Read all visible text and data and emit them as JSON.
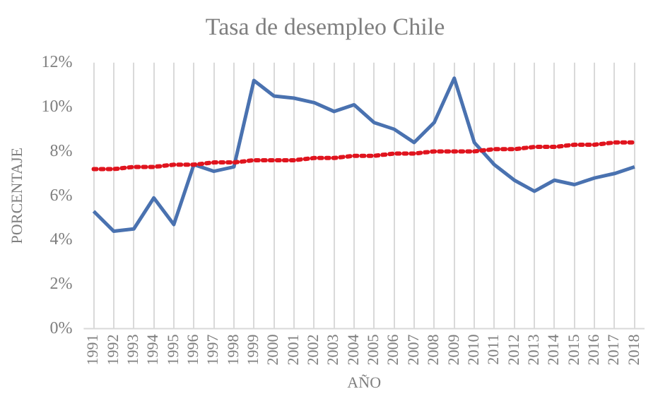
{
  "chart_data": {
    "type": "line",
    "title": "Tasa de desempleo Chile",
    "xlabel": "AÑO",
    "ylabel": "PORCENTAJE",
    "categories": [
      "1991",
      "1992",
      "1993",
      "1994",
      "1995",
      "1996",
      "1997",
      "1998",
      "1999",
      "2000",
      "2001",
      "2002",
      "2003",
      "2004",
      "2005",
      "2006",
      "2007",
      "2008",
      "2009",
      "2010",
      "2011",
      "2012",
      "2013",
      "2014",
      "2015",
      "2016",
      "2017",
      "2018"
    ],
    "series": [
      {
        "color": "#4a72b0",
        "values": [
          5.3,
          4.4,
          4.5,
          5.9,
          4.7,
          7.4,
          7.1,
          7.3,
          11.2,
          10.5,
          10.4,
          10.2,
          9.8,
          10.1,
          9.3,
          9.0,
          8.4,
          9.3,
          11.3,
          8.4,
          7.4,
          6.7,
          6.2,
          6.7,
          6.5,
          6.8,
          7.0,
          7.3
        ]
      },
      {
        "type": "line",
        "color": "#e0141e",
        "line_style": "dotted",
        "values": [
          7.2,
          7.2,
          7.3,
          7.3,
          7.4,
          7.4,
          7.5,
          7.5,
          7.6,
          7.6,
          7.6,
          7.7,
          7.7,
          7.8,
          7.8,
          7.9,
          7.9,
          8.0,
          8.0,
          8.0,
          8.1,
          8.1,
          8.2,
          8.2,
          8.3,
          8.3,
          8.4,
          8.4
        ]
      }
    ],
    "ylim": [
      0,
      12
    ],
    "yticks": [
      {
        "value": 0,
        "label": "0%"
      },
      {
        "value": 2,
        "label": "2%"
      },
      {
        "value": 4,
        "label": "4%"
      },
      {
        "value": 6,
        "label": "6%"
      },
      {
        "value": 8,
        "label": "8%"
      },
      {
        "value": 10,
        "label": "10%"
      },
      {
        "value": 12,
        "label": "12%"
      }
    ],
    "grid": "x",
    "legend": false,
    "marker": "none"
  }
}
